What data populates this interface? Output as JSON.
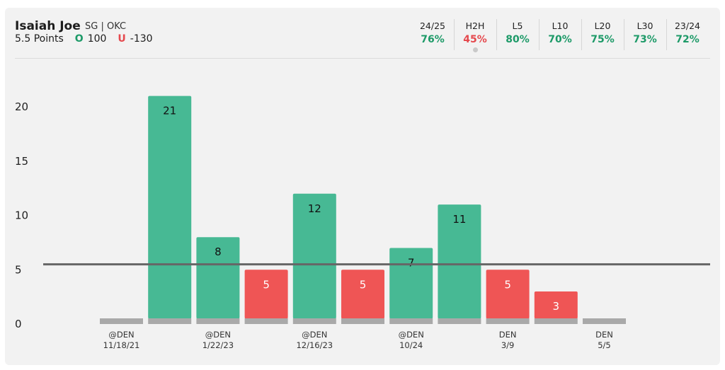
{
  "player": {
    "name": "Isaiah Joe",
    "position_team": "SG | OKC",
    "line": "5.5 Points",
    "over_label": "O",
    "over_odds": "100",
    "under_label": "U",
    "under_odds": "-130"
  },
  "stats": [
    {
      "label": "24/25",
      "value": "76%",
      "color": "#1d9a68"
    },
    {
      "label": "H2H",
      "value": "45%",
      "color": "#e5484d",
      "selected": true
    },
    {
      "label": "L5",
      "value": "80%",
      "color": "#1d9a68"
    },
    {
      "label": "L10",
      "value": "70%",
      "color": "#1d9a68"
    },
    {
      "label": "L20",
      "value": "75%",
      "color": "#1d9a68"
    },
    {
      "label": "L30",
      "value": "73%",
      "color": "#1d9a68"
    },
    {
      "label": "23/24",
      "value": "72%",
      "color": "#1d9a68"
    }
  ],
  "colors": {
    "over": "#47b994",
    "under": "#ef5555",
    "zero": "#a9a9a9",
    "line": "#666666"
  },
  "chart_data": {
    "type": "bar",
    "threshold": 5.5,
    "ylim": [
      0,
      22.5
    ],
    "yticks": [
      0,
      5,
      10,
      15,
      20
    ],
    "values": [
      0,
      21,
      8,
      5,
      12,
      5,
      7,
      11,
      5,
      3,
      0
    ],
    "shown_labels": [
      "",
      "21",
      "8",
      "5",
      "12",
      "5",
      "7",
      "11",
      "5",
      "3",
      ""
    ],
    "x_labels": [
      [
        "@DEN",
        "11/18/21"
      ],
      [
        "",
        ""
      ],
      [
        "@DEN",
        "1/22/23"
      ],
      [
        "",
        ""
      ],
      [
        "@DEN",
        "12/16/23"
      ],
      [
        "",
        ""
      ],
      [
        "@DEN",
        "10/24"
      ],
      [
        "",
        ""
      ],
      [
        "DEN",
        "3/9"
      ],
      [
        "",
        ""
      ],
      [
        "DEN",
        "5/5"
      ]
    ]
  }
}
